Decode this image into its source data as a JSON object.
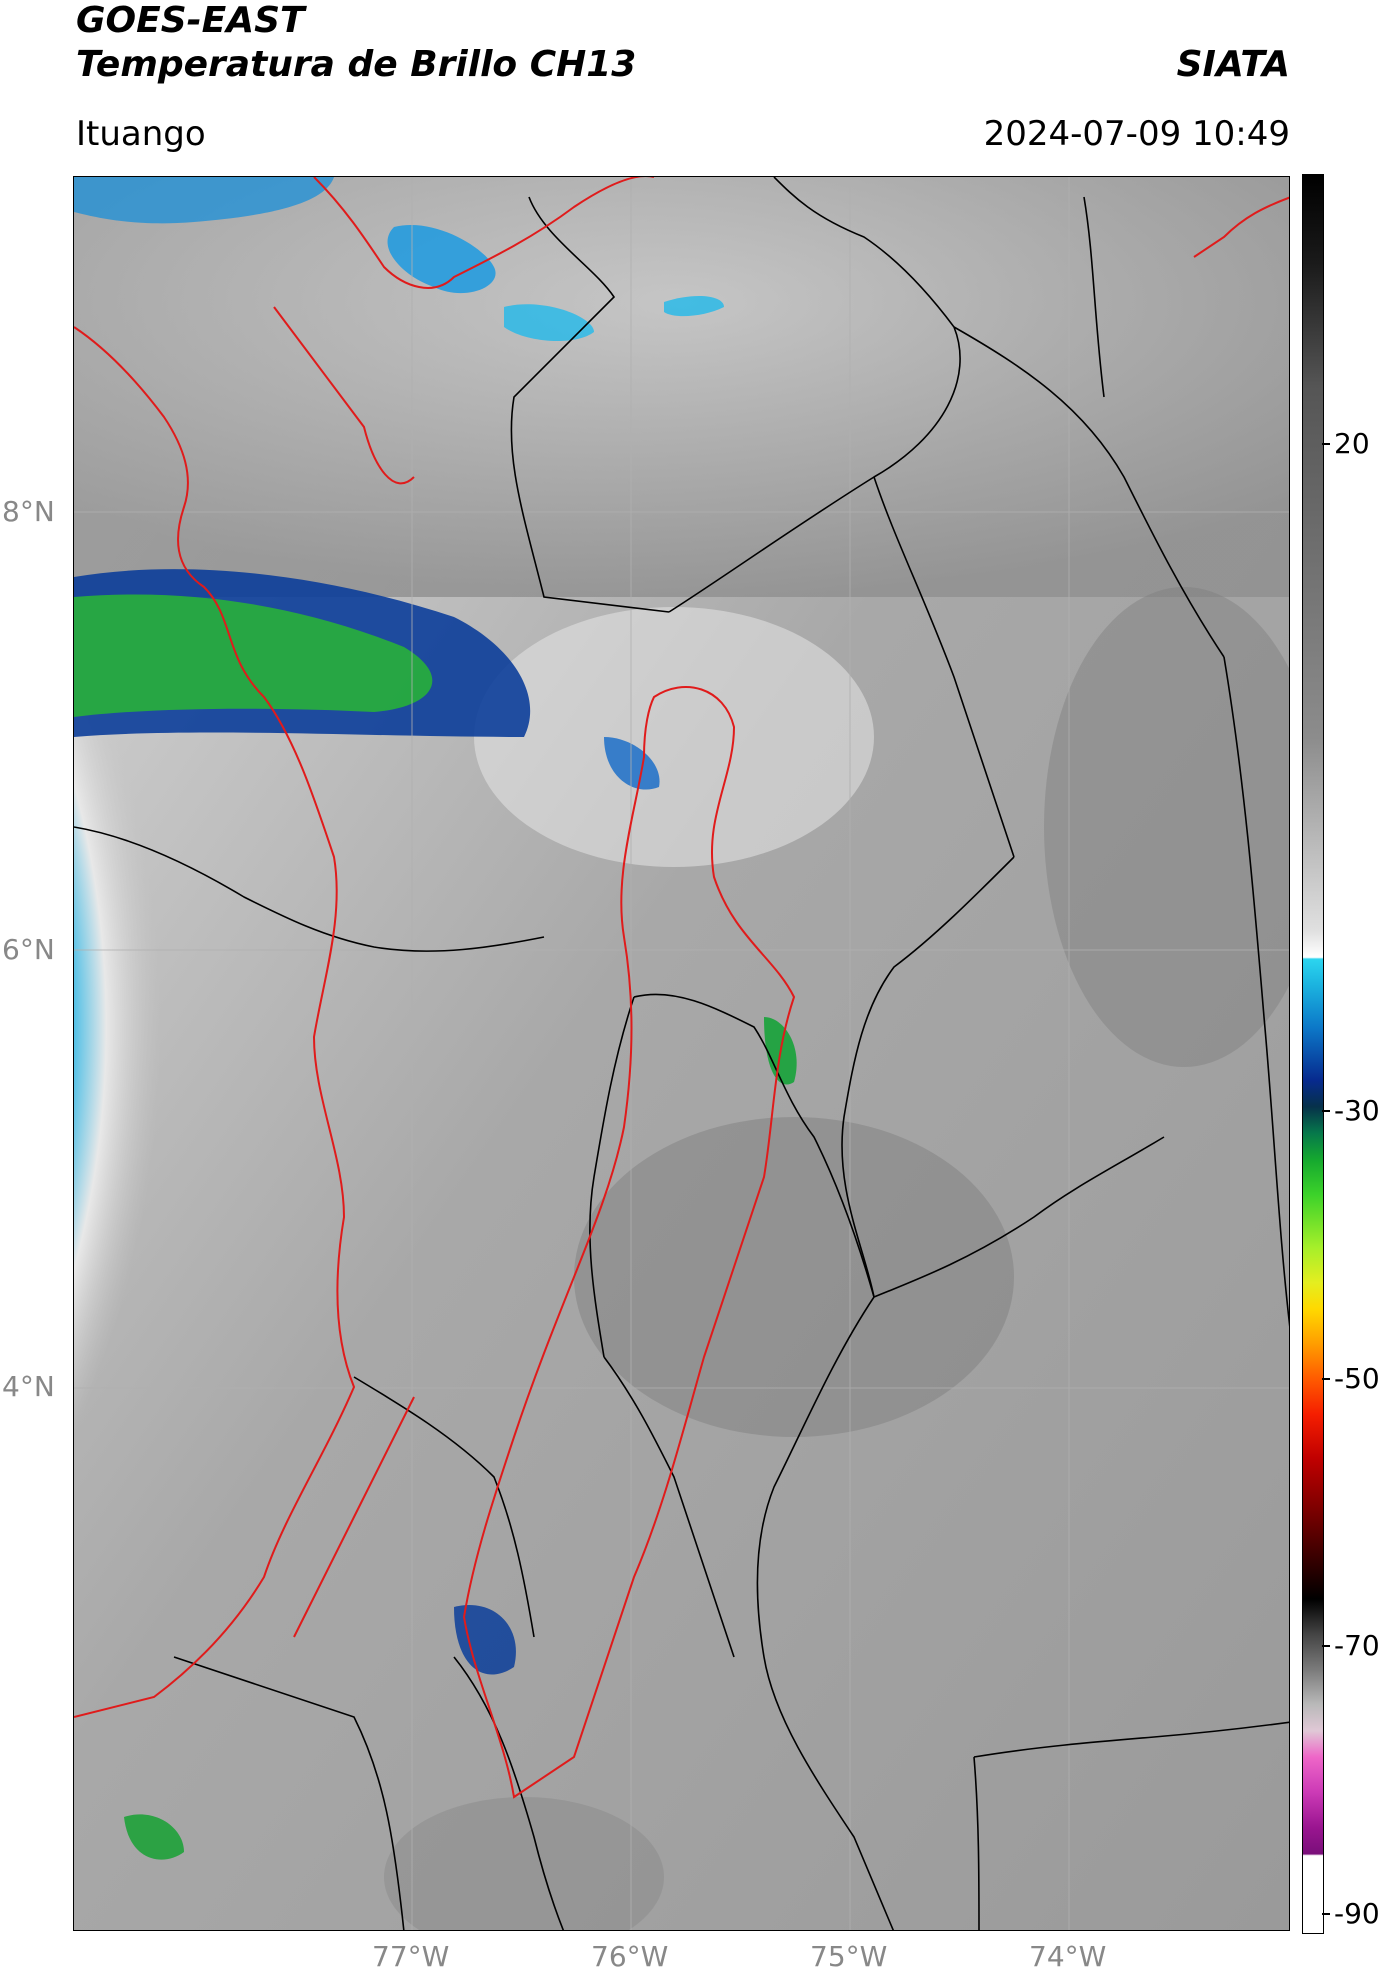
{
  "header": {
    "title": "GOES-EAST",
    "subtitle": "Temperatura de Brillo CH13",
    "brand": "SIATA",
    "location": "Ituango",
    "datetime": "2024-07-09 10:49"
  },
  "map": {
    "lat_labels": [
      "8°N",
      "6°N",
      "4°N"
    ],
    "lon_labels": [
      "77°W",
      "76°W",
      "75°W",
      "74°W"
    ],
    "gridlines": true,
    "layers": [
      "satellite-brightness-temperature",
      "department-boundaries",
      "watershed-boundaries"
    ],
    "colors": {
      "department_border": "#000000",
      "watershed_border": "#e01b1b",
      "cold_cloud_top": "#8b0000",
      "cloud_free": "#9a9a9a"
    }
  },
  "colorbar": {
    "ticks": [
      "20",
      "-30",
      "-50",
      "-70",
      "-90"
    ],
    "range": [
      -90,
      40
    ],
    "colormap": "gray-cyan-blue-green-yellow-red-black-pink"
  }
}
